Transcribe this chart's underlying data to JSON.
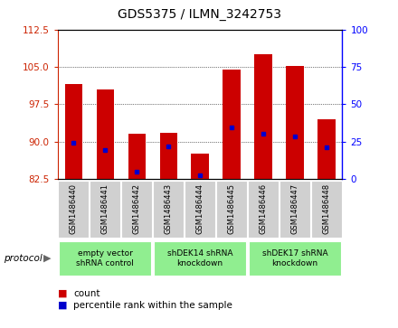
{
  "title": "GDS5375 / ILMN_3242753",
  "samples": [
    "GSM1486440",
    "GSM1486441",
    "GSM1486442",
    "GSM1486443",
    "GSM1486444",
    "GSM1486445",
    "GSM1486446",
    "GSM1486447",
    "GSM1486448"
  ],
  "bar_tops": [
    101.5,
    100.5,
    91.5,
    91.8,
    87.5,
    104.5,
    107.5,
    105.2,
    94.5
  ],
  "bar_bottoms": [
    82.5,
    82.5,
    82.5,
    82.5,
    82.5,
    82.5,
    82.5,
    82.5,
    82.5
  ],
  "blue_positions": [
    89.8,
    88.2,
    84.0,
    89.0,
    83.2,
    92.8,
    91.5,
    91.0,
    88.8
  ],
  "ylim_left": [
    82.5,
    112.5
  ],
  "ylim_right": [
    0,
    100
  ],
  "yticks_left": [
    82.5,
    90.0,
    97.5,
    105.0,
    112.5
  ],
  "yticks_right": [
    0,
    25,
    50,
    75,
    100
  ],
  "bar_color": "#cc0000",
  "blue_color": "#0000cc",
  "bar_width": 0.55,
  "group_ranges": [
    [
      0,
      3
    ],
    [
      3,
      6
    ],
    [
      6,
      9
    ]
  ],
  "group_labels": [
    "empty vector\nshRNA control",
    "shDEK14 shRNA\nknockdown",
    "shDEK17 shRNA\nknockdown"
  ],
  "green_color": "#90ee90",
  "gray_color": "#d0d0d0",
  "legend_count_label": "count",
  "legend_pct_label": "percentile rank within the sample",
  "title_fontsize": 10
}
